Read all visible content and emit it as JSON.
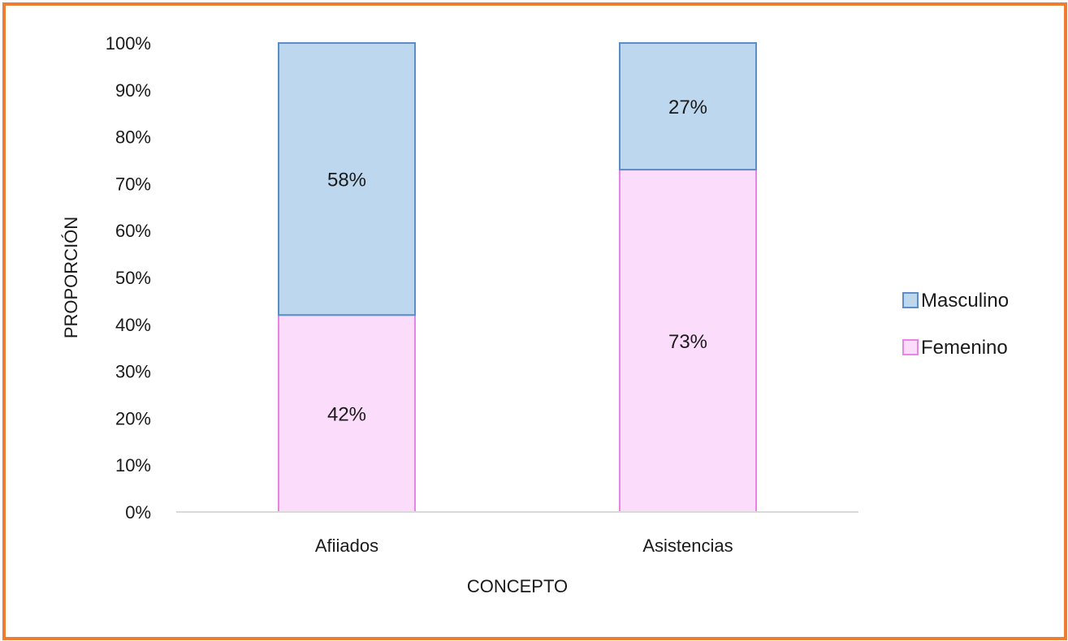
{
  "chart_data": {
    "type": "bar",
    "stacked": true,
    "percent_stacked": true,
    "categories": [
      "Afiiados",
      "Asistencias"
    ],
    "series": [
      {
        "name": "Femenino",
        "values": [
          42,
          73
        ],
        "labels": [
          "42%",
          "73%"
        ],
        "fill": "#FBDDFB",
        "stroke": "#E685E6"
      },
      {
        "name": "Masculino",
        "values": [
          58,
          27
        ],
        "labels": [
          "58%",
          "27%"
        ],
        "fill": "#BDD7EE",
        "stroke": "#5B8DC9"
      }
    ],
    "xlabel": "CONCEPTO",
    "ylabel": "PROPORCIÓN",
    "ylim": [
      0,
      100
    ],
    "yticks": [
      "0%",
      "10%",
      "20%",
      "30%",
      "40%",
      "50%",
      "60%",
      "70%",
      "80%",
      "90%",
      "100%"
    ],
    "legend": {
      "position": "right",
      "order": [
        "Masculino",
        "Femenino"
      ]
    },
    "grid": false,
    "frame_color": "#ED7D31"
  }
}
